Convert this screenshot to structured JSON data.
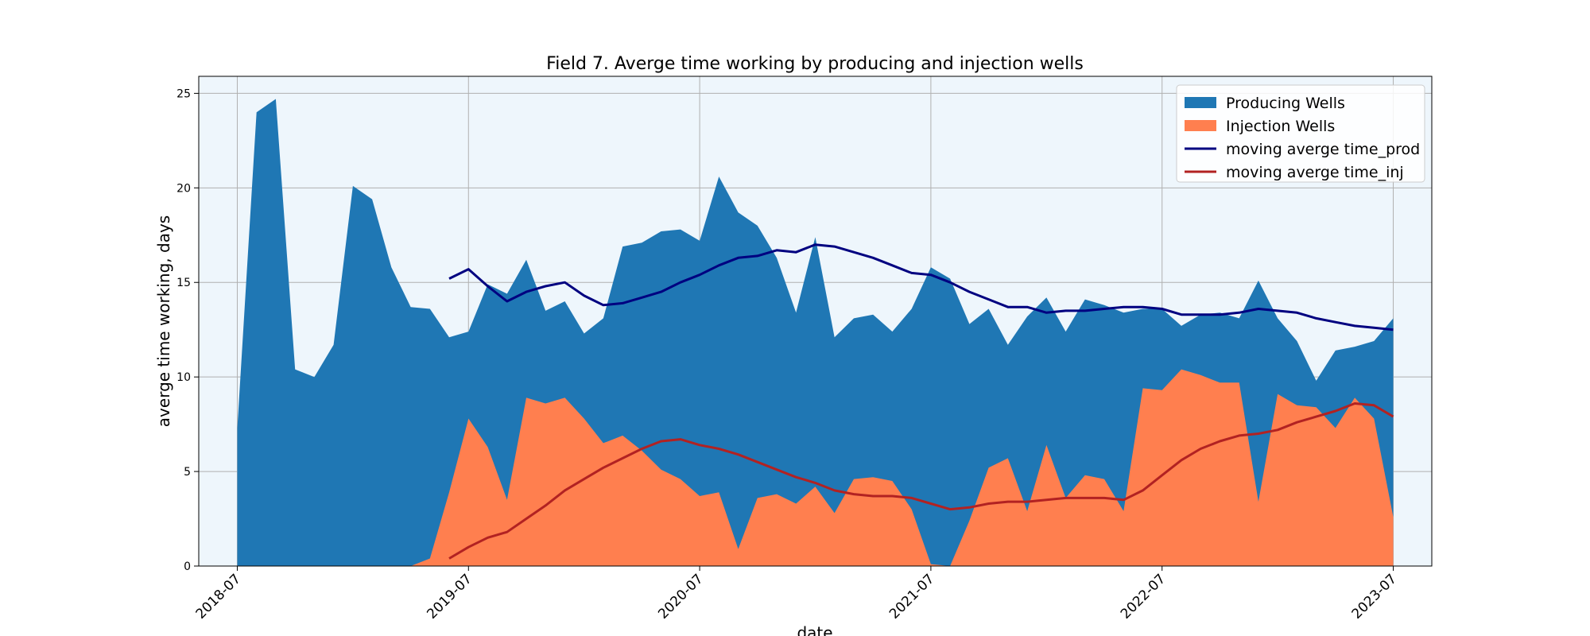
{
  "chart_data": {
    "type": "area",
    "title": "Field 7. Averge time working by producing and injection wells",
    "xlabel": "date",
    "ylabel": "averge time working, days",
    "xlim": [
      "2018-05",
      "2023-09"
    ],
    "ylim": [
      0,
      25.9
    ],
    "x_ticks": [
      "2018-07",
      "2019-07",
      "2020-07",
      "2021-07",
      "2022-07",
      "2023-07"
    ],
    "y_ticks": [
      0,
      5,
      10,
      15,
      20,
      25
    ],
    "grid": true,
    "legend_position": "top-right",
    "background_color": "#eef6fc",
    "x": [
      "2018-07",
      "2018-08",
      "2018-09",
      "2018-10",
      "2018-11",
      "2018-12",
      "2019-01",
      "2019-02",
      "2019-03",
      "2019-04",
      "2019-05",
      "2019-06",
      "2019-07",
      "2019-08",
      "2019-09",
      "2019-10",
      "2019-11",
      "2019-12",
      "2020-01",
      "2020-02",
      "2020-03",
      "2020-04",
      "2020-05",
      "2020-06",
      "2020-07",
      "2020-08",
      "2020-09",
      "2020-10",
      "2020-11",
      "2020-12",
      "2021-01",
      "2021-02",
      "2021-03",
      "2021-04",
      "2021-05",
      "2021-06",
      "2021-07",
      "2021-08",
      "2021-09",
      "2021-10",
      "2021-11",
      "2021-12",
      "2022-01",
      "2022-02",
      "2022-03",
      "2022-04",
      "2022-05",
      "2022-06",
      "2022-07",
      "2022-08",
      "2022-09",
      "2022-10",
      "2022-11",
      "2022-12",
      "2023-01",
      "2023-02",
      "2023-03",
      "2023-04",
      "2023-05",
      "2023-06",
      "2023-07"
    ],
    "series": [
      {
        "name": "Producing Wells",
        "kind": "area",
        "color": "#1f77b4",
        "values": [
          7.3,
          24.0,
          24.7,
          10.4,
          10.0,
          11.7,
          20.1,
          19.4,
          15.8,
          13.7,
          13.6,
          12.1,
          12.4,
          14.9,
          14.4,
          16.2,
          13.5,
          14.0,
          12.3,
          13.1,
          16.9,
          17.1,
          17.7,
          17.8,
          17.2,
          20.6,
          18.7,
          18.0,
          16.3,
          13.4,
          17.4,
          12.1,
          13.1,
          13.3,
          12.4,
          13.6,
          15.8,
          15.2,
          12.8,
          13.6,
          11.7,
          13.2,
          14.2,
          12.4,
          14.1,
          13.8,
          13.4,
          13.6,
          13.6,
          12.7,
          13.3,
          13.4,
          13.1,
          15.1,
          13.1,
          11.9,
          9.8,
          11.4,
          11.6,
          11.9,
          13.1
        ]
      },
      {
        "name": "Injection Wells",
        "kind": "area",
        "color": "#ff7f4f",
        "values": [
          0,
          0,
          0,
          0,
          0,
          0,
          0,
          0,
          0,
          0,
          0.4,
          3.9,
          7.8,
          6.3,
          3.5,
          8.9,
          8.6,
          8.9,
          7.8,
          6.5,
          6.9,
          6.1,
          5.1,
          4.6,
          3.7,
          3.9,
          0.9,
          3.6,
          3.8,
          3.3,
          4.2,
          2.8,
          4.6,
          4.7,
          4.5,
          3.0,
          0.1,
          0,
          2.4,
          5.2,
          5.7,
          2.9,
          6.4,
          3.6,
          4.8,
          4.6,
          2.9,
          9.4,
          9.3,
          10.4,
          10.1,
          9.7,
          9.7,
          3.4,
          9.1,
          8.5,
          8.4,
          7.3,
          8.9,
          7.8,
          2.6
        ]
      },
      {
        "name": "moving averge time_prod",
        "kind": "line",
        "color": "#000080",
        "values": [
          null,
          null,
          null,
          null,
          null,
          null,
          null,
          null,
          null,
          null,
          null,
          15.2,
          15.7,
          14.8,
          14.0,
          14.5,
          14.8,
          15.0,
          14.3,
          13.8,
          13.9,
          14.2,
          14.5,
          15.0,
          15.4,
          15.9,
          16.3,
          16.4,
          16.7,
          16.6,
          17.0,
          16.9,
          16.6,
          16.3,
          15.9,
          15.5,
          15.4,
          15.0,
          14.5,
          14.1,
          13.7,
          13.7,
          13.4,
          13.5,
          13.5,
          13.6,
          13.7,
          13.7,
          13.6,
          13.3,
          13.3,
          13.3,
          13.4,
          13.6,
          13.5,
          13.4,
          13.1,
          12.9,
          12.7,
          12.6,
          12.5
        ]
      },
      {
        "name": "moving averge time_inj",
        "kind": "line",
        "color": "#b22222",
        "values": [
          null,
          null,
          null,
          null,
          null,
          null,
          null,
          null,
          null,
          null,
          null,
          0.4,
          1.0,
          1.5,
          1.8,
          2.5,
          3.2,
          4.0,
          4.6,
          5.2,
          5.7,
          6.2,
          6.6,
          6.7,
          6.4,
          6.2,
          5.9,
          5.5,
          5.1,
          4.7,
          4.4,
          4.0,
          3.8,
          3.7,
          3.7,
          3.6,
          3.3,
          3.0,
          3.1,
          3.3,
          3.4,
          3.4,
          3.5,
          3.6,
          3.6,
          3.6,
          3.5,
          4.0,
          4.8,
          5.6,
          6.2,
          6.6,
          6.9,
          7.0,
          7.2,
          7.6,
          7.9,
          8.2,
          8.6,
          8.5,
          7.9
        ]
      }
    ]
  }
}
